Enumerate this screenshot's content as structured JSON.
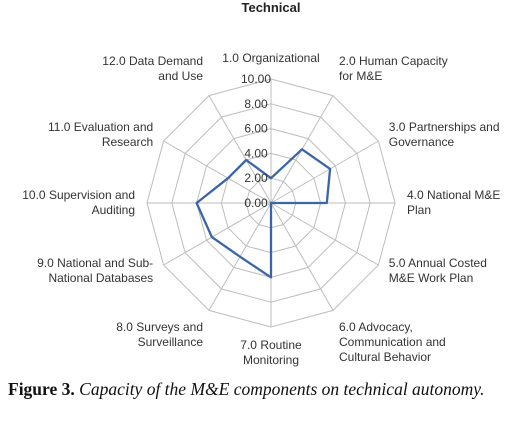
{
  "chart_data": {
    "type": "radar",
    "title": "Technical",
    "categories": [
      [
        "1.0 Organizational"
      ],
      [
        "2.0 Human Capacity",
        "for M&E"
      ],
      [
        "3.0 Partnerships and",
        "Governance"
      ],
      [
        "4.0 National M&E",
        "Plan"
      ],
      [
        "5.0 Annual Costed",
        "M&E Work Plan"
      ],
      [
        "6.0 Advocacy,",
        "Communication and",
        "Cultural Behavior"
      ],
      [
        "7.0 Routine",
        "Monitoring"
      ],
      [
        "8.0 Surveys and",
        "Surveillance"
      ],
      [
        "9.0 National and Sub-",
        "National Databases"
      ],
      [
        "10.0 Supervision and",
        "Auditing"
      ],
      [
        "11.0 Evaluation and",
        "Research"
      ],
      [
        "12.0 Data Demand",
        "and Use"
      ]
    ],
    "radial_ticks": [
      "0.00",
      "2.00",
      "4.00",
      "6.00",
      "8.00",
      "10.00"
    ],
    "rmax": 10,
    "grid": true,
    "series": [
      {
        "values": [
          2.0,
          5.0,
          5.5,
          4.5,
          0.0,
          0.0,
          6.0,
          5.0,
          5.5,
          6.0,
          4.0,
          4.0
        ],
        "color": "#3c65a8"
      }
    ]
  },
  "caption": {
    "label": "Figure 3.",
    "text": "Capacity of the M&E components on technical autonomy."
  }
}
